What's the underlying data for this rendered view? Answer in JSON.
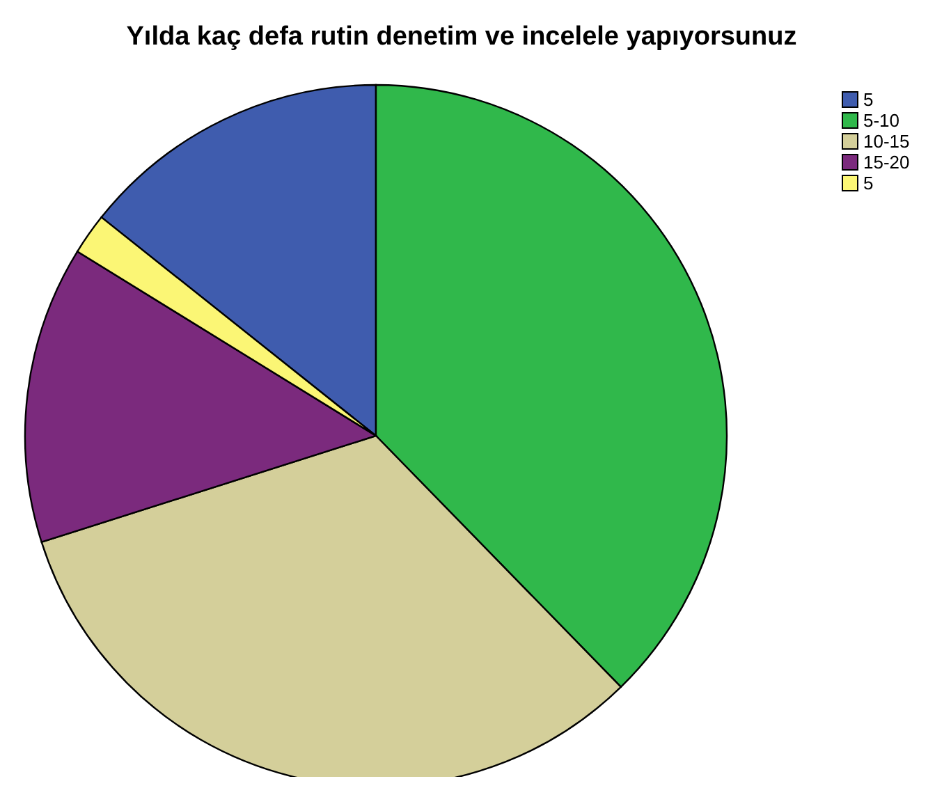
{
  "chart_data": {
    "type": "pie",
    "title": "Yılda kaç defa rutin denetim ve incelele yapıyorsunuz",
    "categories": [
      "5",
      "5-10",
      "10-15",
      "15-20",
      "5"
    ],
    "values": [
      14.3,
      37.7,
      32.4,
      13.7,
      1.9
    ],
    "colors": [
      "#3f5cae",
      "#30b84b",
      "#d4cf9a",
      "#7b2a7d",
      "#fbf675"
    ],
    "legend": "top right"
  }
}
